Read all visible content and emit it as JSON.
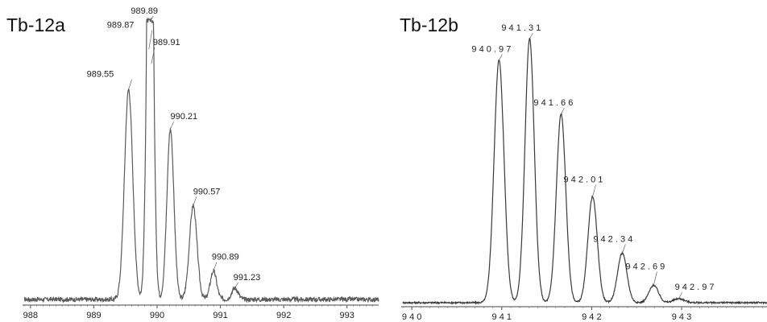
{
  "chart_data": [
    {
      "type": "line",
      "title": "Tb-12a",
      "xlim": [
        987.9,
        993.5
      ],
      "ylim": [
        0,
        100
      ],
      "x_ticks": [
        "988",
        "989",
        "990",
        "991",
        "992",
        "993"
      ],
      "peaks": [
        {
          "x": 989.55,
          "y": 76,
          "label": "989.55"
        },
        {
          "x": 989.87,
          "y": 90,
          "label": "989.87"
        },
        {
          "x": 989.89,
          "y": 100,
          "label": "989.89"
        },
        {
          "x": 989.91,
          "y": 85,
          "label": "989.91"
        },
        {
          "x": 990.21,
          "y": 62,
          "label": "990.21"
        },
        {
          "x": 990.57,
          "y": 35,
          "label": "990.57"
        },
        {
          "x": 990.89,
          "y": 12,
          "label": "990.89"
        },
        {
          "x": 991.23,
          "y": 6,
          "label": "991.23"
        }
      ],
      "grid": false,
      "color": "#555555"
    },
    {
      "type": "line",
      "title": "Tb-12b",
      "xlim": [
        939.9,
        943.95
      ],
      "ylim": [
        0,
        100
      ],
      "x_ticks": [
        "9 4 0",
        "9 4 1",
        "9 4 2",
        "9 4 3"
      ],
      "peaks": [
        {
          "x": 940.97,
          "y": 92,
          "label": "9 4 0 . 9 7"
        },
        {
          "x": 941.31,
          "y": 100,
          "label": "9 4 1 . 3 1"
        },
        {
          "x": 941.66,
          "y": 72,
          "label": "9 4 1 . 6 6"
        },
        {
          "x": 942.01,
          "y": 41,
          "label": "9 4 2 . 0 1"
        },
        {
          "x": 942.34,
          "y": 20,
          "label": "9 4 2 . 3 4"
        },
        {
          "x": 942.69,
          "y": 8,
          "label": "9 4 2 . 6 9"
        },
        {
          "x": 942.97,
          "y": 3,
          "label": "9 4 2 . 9 7"
        }
      ],
      "grid": false,
      "color": "#333333"
    }
  ]
}
